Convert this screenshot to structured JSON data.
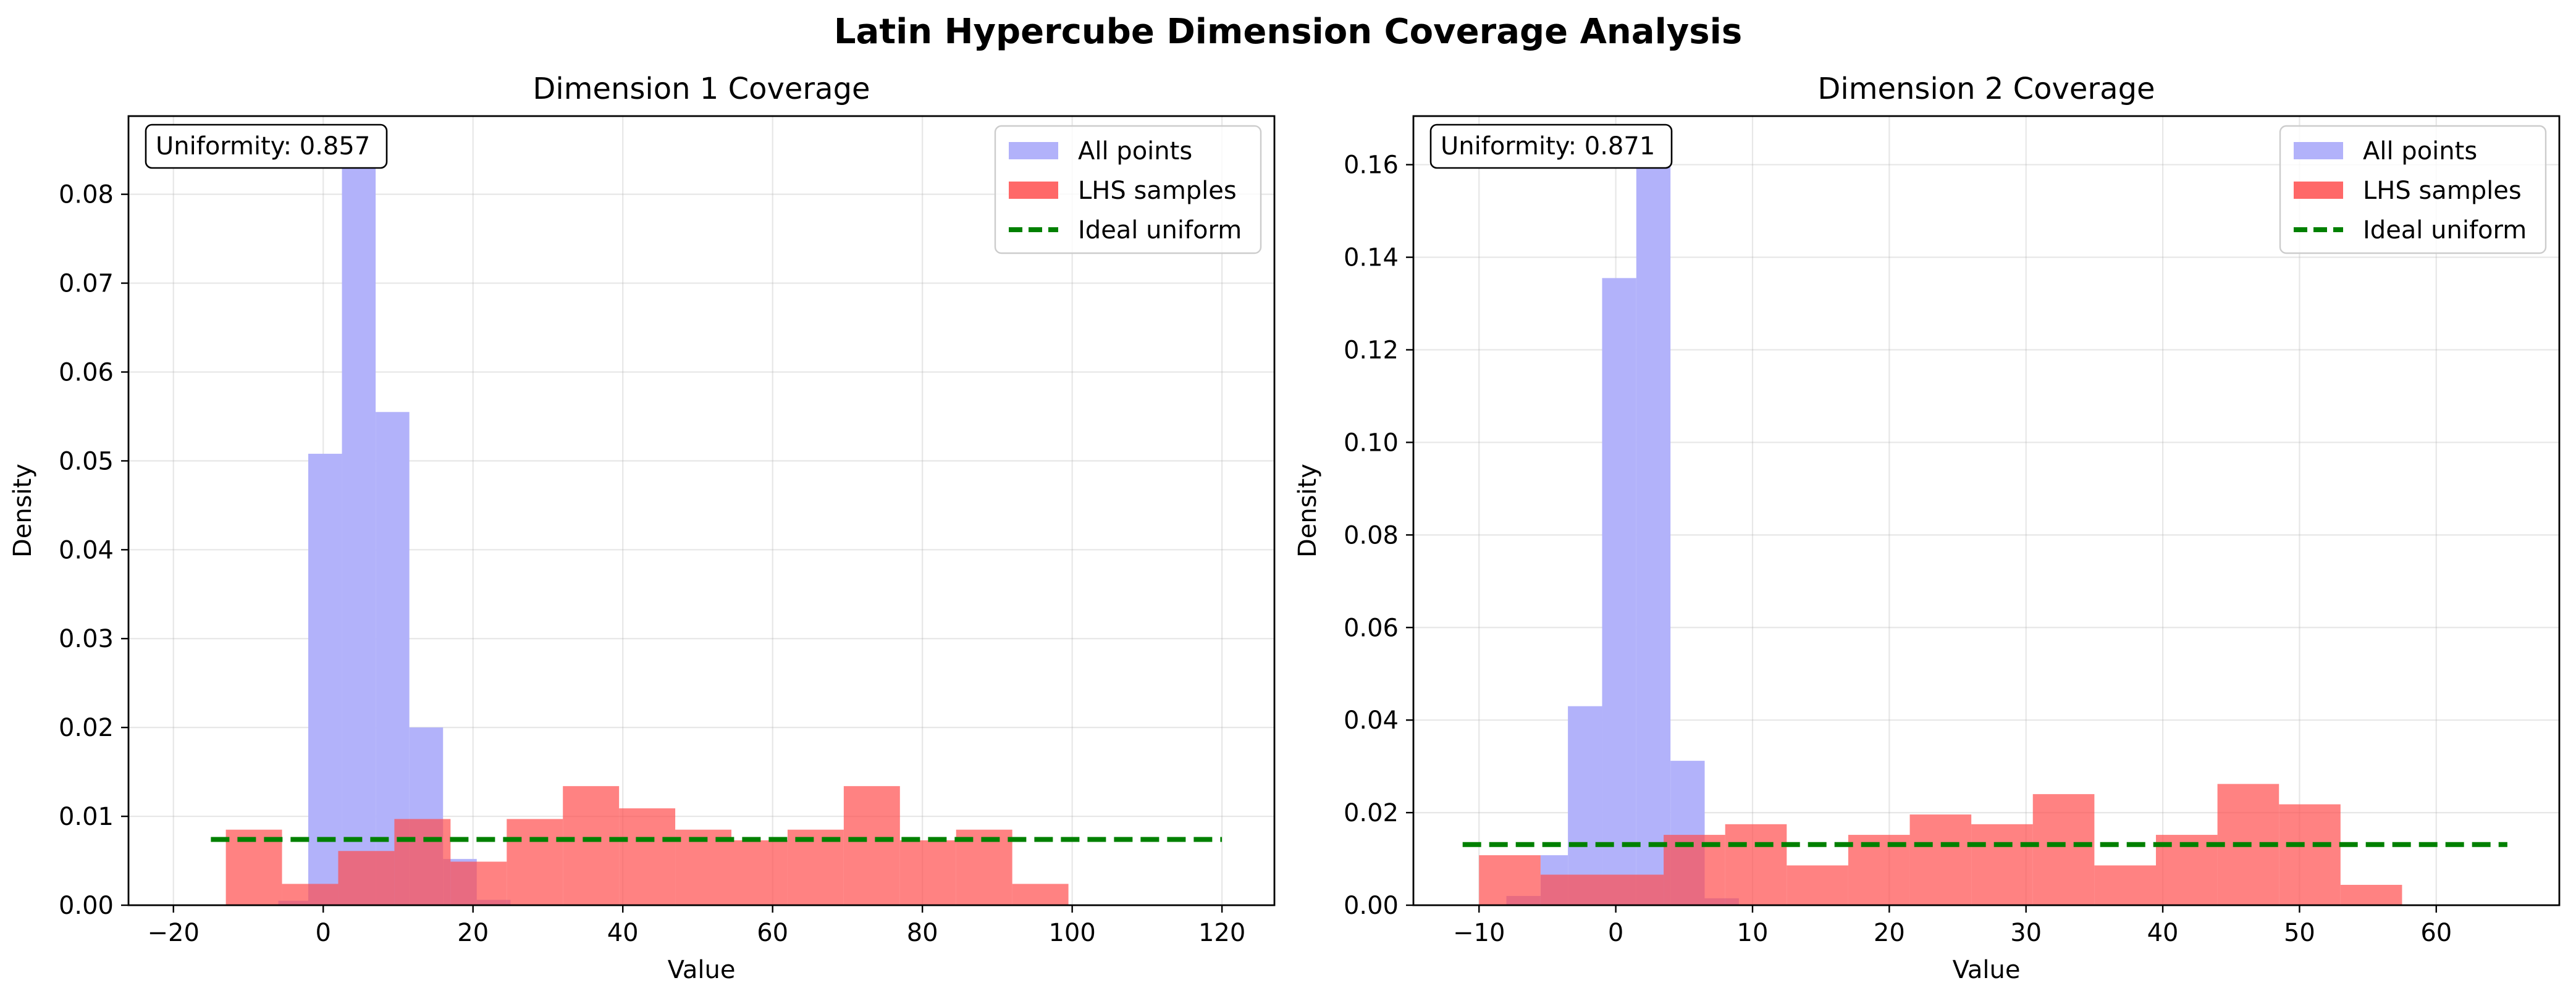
{
  "figure": {
    "suptitle": "Latin Hypercube Dimension Coverage Analysis"
  },
  "chart_data": [
    {
      "type": "histogram",
      "title": "Dimension 1 Coverage",
      "xlabel": "Value",
      "ylabel": "Density",
      "xlim": [
        -26,
        127
      ],
      "ylim": [
        0,
        0.0888
      ],
      "xticks": [
        -20,
        0,
        20,
        40,
        60,
        80,
        100,
        120
      ],
      "xtick_labels": [
        "−20",
        "0",
        "20",
        "40",
        "60",
        "80",
        "100",
        "120"
      ],
      "yticks": [
        0,
        0.01,
        0.02,
        0.03,
        0.04,
        0.05,
        0.06,
        0.07,
        0.08
      ],
      "ytick_labels": [
        "0.00",
        "0.01",
        "0.02",
        "0.03",
        "0.04",
        "0.05",
        "0.06",
        "0.07",
        "0.08"
      ],
      "grid": true,
      "legend_position": "upper right",
      "annotation": {
        "text": "Uniformity: 0.857",
        "position": "upper left"
      },
      "series": [
        {
          "name": "All points",
          "kind": "bars",
          "color": "#b2b2fa",
          "bin_edges": [
            -6,
            -2,
            2.5,
            7,
            11.5,
            16,
            20.5,
            25
          ],
          "values": [
            0.0005,
            0.0508,
            0.0838,
            0.0555,
            0.02,
            0.0052,
            0.0006
          ]
        },
        {
          "name": "LHS samples",
          "kind": "bars",
          "color": "#ff4d4d",
          "bin_edges": [
            -13,
            -5.5,
            2,
            9.5,
            17,
            24.5,
            32,
            39.5,
            47,
            54.5,
            62,
            69.5,
            77,
            84.5,
            92,
            99.5,
            107
          ],
          "values": [
            0.0085,
            0.0024,
            0.0061,
            0.0097,
            0.0049,
            0.0097,
            0.0134,
            0.0109,
            0.0085,
            0.0073,
            0.0085,
            0.0134,
            0.0073,
            0.0085,
            0.0024,
            0.0
          ]
        },
        {
          "name": "Ideal uniform",
          "kind": "line",
          "color": "#008000",
          "x": [
            -15,
            120
          ],
          "y": [
            0.0074,
            0.0074
          ]
        }
      ]
    },
    {
      "type": "histogram",
      "title": "Dimension 2 Coverage",
      "xlabel": "Value",
      "ylabel": "Density",
      "xlim": [
        -14.8,
        69
      ],
      "ylim": [
        0,
        0.1705
      ],
      "xticks": [
        -10,
        0,
        10,
        20,
        30,
        40,
        50,
        60
      ],
      "xtick_labels": [
        "−10",
        "0",
        "10",
        "20",
        "30",
        "40",
        "50",
        "60"
      ],
      "yticks": [
        0,
        0.02,
        0.04,
        0.06,
        0.08,
        0.1,
        0.12,
        0.14,
        0.16
      ],
      "ytick_labels": [
        "0.00",
        "0.02",
        "0.04",
        "0.06",
        "0.08",
        "0.10",
        "0.12",
        "0.14",
        "0.16"
      ],
      "grid": true,
      "legend_position": "upper right",
      "annotation": {
        "text": "Uniformity: 0.871",
        "position": "upper left"
      },
      "series": [
        {
          "name": "All points",
          "kind": "bars",
          "color": "#b2b2fa",
          "bin_edges": [
            -8,
            -5.5,
            -3.5,
            -1,
            1.5,
            4,
            6.5,
            9
          ],
          "values": [
            0.002,
            0.0108,
            0.043,
            0.1355,
            0.1635,
            0.0312,
            0.0015
          ]
        },
        {
          "name": "LHS samples",
          "kind": "bars",
          "color": "#ff4d4d",
          "bin_edges": [
            -10,
            -5.5,
            -1,
            3.5,
            8,
            12.5,
            17,
            21.5,
            26,
            30.5,
            35,
            39.5,
            44,
            48.5,
            53,
            57.5
          ],
          "values": [
            0.0108,
            0.0066,
            0.0066,
            0.0152,
            0.0175,
            0.0086,
            0.0152,
            0.0196,
            0.0175,
            0.024,
            0.0086,
            0.0152,
            0.0262,
            0.0218,
            0.0044
          ]
        },
        {
          "name": "Ideal uniform",
          "kind": "line",
          "color": "#008000",
          "x": [
            -11.2,
            65.2
          ],
          "y": [
            0.0131,
            0.0131
          ]
        }
      ]
    }
  ]
}
